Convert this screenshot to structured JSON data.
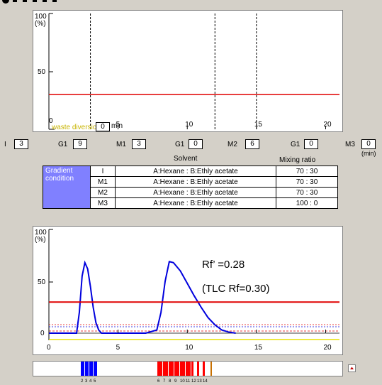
{
  "top_chart": {
    "y_max_label": "100",
    "y_unit_label": "(%)",
    "y_ticks": [
      "50",
      "0"
    ],
    "x_ticks": [
      "5",
      "10",
      "15",
      "20"
    ],
    "waste_label": "waste diversion",
    "waste_value": "0",
    "waste_unit": "min",
    "line_color": "#e00000",
    "line_percent": 30,
    "xlim": [
      0,
      21
    ],
    "dashed_x": [
      3,
      12,
      15
    ]
  },
  "steps": [
    {
      "label": "I",
      "value": "3"
    },
    {
      "label": "G1",
      "value": "9"
    },
    {
      "label": "M1",
      "value": "3"
    },
    {
      "label": "G1",
      "value": "0"
    },
    {
      "label": "M2",
      "value": "6"
    },
    {
      "label": "G1",
      "value": "0"
    },
    {
      "label": "M3",
      "value": "0"
    }
  ],
  "min_label": "(min)",
  "table": {
    "header_solvent": "Solvent",
    "header_mixing": "Mixing ratio",
    "condition_line1": "Gradient",
    "condition_line2": "condition",
    "rows": [
      {
        "step": "I",
        "solvent": "A:Hexane : B:Ethly acetate",
        "ratio": "70 : 30"
      },
      {
        "step": "M1",
        "solvent": "A:Hexane : B:Ethly acetate",
        "ratio": "70 : 30"
      },
      {
        "step": "M2",
        "solvent": "A:Hexane : B:Ethly acetate",
        "ratio": "70 : 30"
      },
      {
        "step": "M3",
        "solvent": "A:Hexane : B:Ethly acetate",
        "ratio": "100 : 0"
      }
    ]
  },
  "chart_data": {
    "type": "line",
    "x_ticks": [
      "0",
      "5",
      "10",
      "15",
      "20"
    ],
    "y_ticks": [
      "100",
      "50",
      "0"
    ],
    "y_unit": "(%)",
    "xlim": [
      0,
      21
    ],
    "ylim": [
      0,
      100
    ],
    "annotation1": "Rf’ =0.28",
    "annotation2": "(TLC Rf=0.30)",
    "series": [
      {
        "color": "#0000dd",
        "x": [
          0,
          2.0,
          2.2,
          2.4,
          2.6,
          2.8,
          3.0,
          3.2,
          3.4,
          3.6,
          3.8,
          4.0,
          5,
          7,
          7.8,
          8.1,
          8.4,
          8.7,
          9.0,
          9.5,
          10.0,
          10.5,
          11.0,
          11.5,
          12.0,
          12.5,
          13.0,
          13.5
        ],
        "y": [
          0,
          0,
          20,
          55,
          68,
          62,
          45,
          25,
          10,
          3,
          0,
          0,
          0,
          0,
          3,
          20,
          50,
          69,
          68,
          60,
          48,
          36,
          25,
          15,
          8,
          3,
          1,
          0
        ]
      },
      {
        "color": "#e00000",
        "x": [
          0,
          21
        ],
        "y": [
          30,
          30
        ]
      }
    ]
  },
  "fractions": {
    "blue_labels": [
      "2",
      "3",
      "4",
      "5"
    ],
    "red_labels": [
      "6",
      "7",
      "8",
      "9",
      "10",
      "11",
      "12",
      "13",
      "14"
    ],
    "blue_color": "#0000ff",
    "red_color": "#ff0000"
  }
}
